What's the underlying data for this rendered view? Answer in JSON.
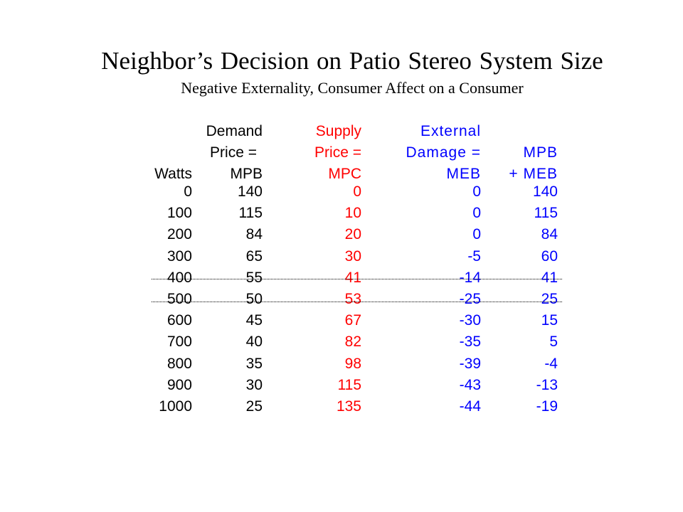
{
  "title": "Neighbor’s Decision on Patio Stereo System Size",
  "subtitle": "Negative Externality, Consumer Affect on a Consumer",
  "colors": {
    "watts": "#000000",
    "demand": "#000000",
    "supply": "#ff0000",
    "external": "#0000ff",
    "mpb_meb": "#0000ff"
  },
  "table": {
    "headers": [
      {
        "lines": [
          "",
          "",
          "Watts"
        ]
      },
      {
        "lines": [
          "Demand",
          "Price =",
          "MPB"
        ]
      },
      {
        "lines": [
          "Supply",
          "Price =",
          "MPC"
        ]
      },
      {
        "lines": [
          "External",
          "Damage =",
          "MEB"
        ]
      },
      {
        "lines": [
          "",
          "MPB",
          "+ MEB"
        ]
      }
    ],
    "rows": [
      [
        "0",
        "140",
        "0",
        "0",
        "140"
      ],
      [
        "100",
        "115",
        "10",
        "0",
        "115"
      ],
      [
        "200",
        "84",
        "20",
        "0",
        "84"
      ],
      [
        "300",
        "65",
        "30",
        "-5",
        "60"
      ],
      [
        "400",
        "55",
        "41",
        "-14",
        "41"
      ],
      [
        "500",
        "50",
        "53",
        "-25",
        "25"
      ],
      [
        "600",
        "45",
        "67",
        "-30",
        "15"
      ],
      [
        "700",
        "40",
        "82",
        "-35",
        "5"
      ],
      [
        "800",
        "35",
        "98",
        "-39",
        "-4"
      ],
      [
        "900",
        "30",
        "115",
        "-43",
        "-13"
      ],
      [
        "1000",
        "25",
        "135",
        "-44",
        "-19"
      ]
    ]
  }
}
